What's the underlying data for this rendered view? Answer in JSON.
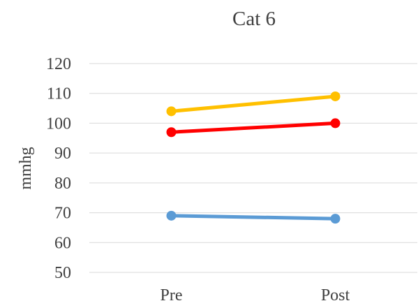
{
  "chart_data": {
    "type": "line",
    "title": "Cat 6",
    "xlabel": "",
    "ylabel": "mmhg",
    "categories": [
      "Pre",
      "Post"
    ],
    "ylim": [
      50,
      120
    ],
    "yticks": [
      50,
      60,
      70,
      80,
      90,
      100,
      110,
      120
    ],
    "grid": true,
    "legend": "none",
    "series": [
      {
        "color": "#FFC000",
        "values": [
          104,
          109
        ]
      },
      {
        "color": "#FF0000",
        "values": [
          97,
          100
        ]
      },
      {
        "color": "#5B9BD5",
        "values": [
          69,
          68
        ]
      }
    ]
  }
}
